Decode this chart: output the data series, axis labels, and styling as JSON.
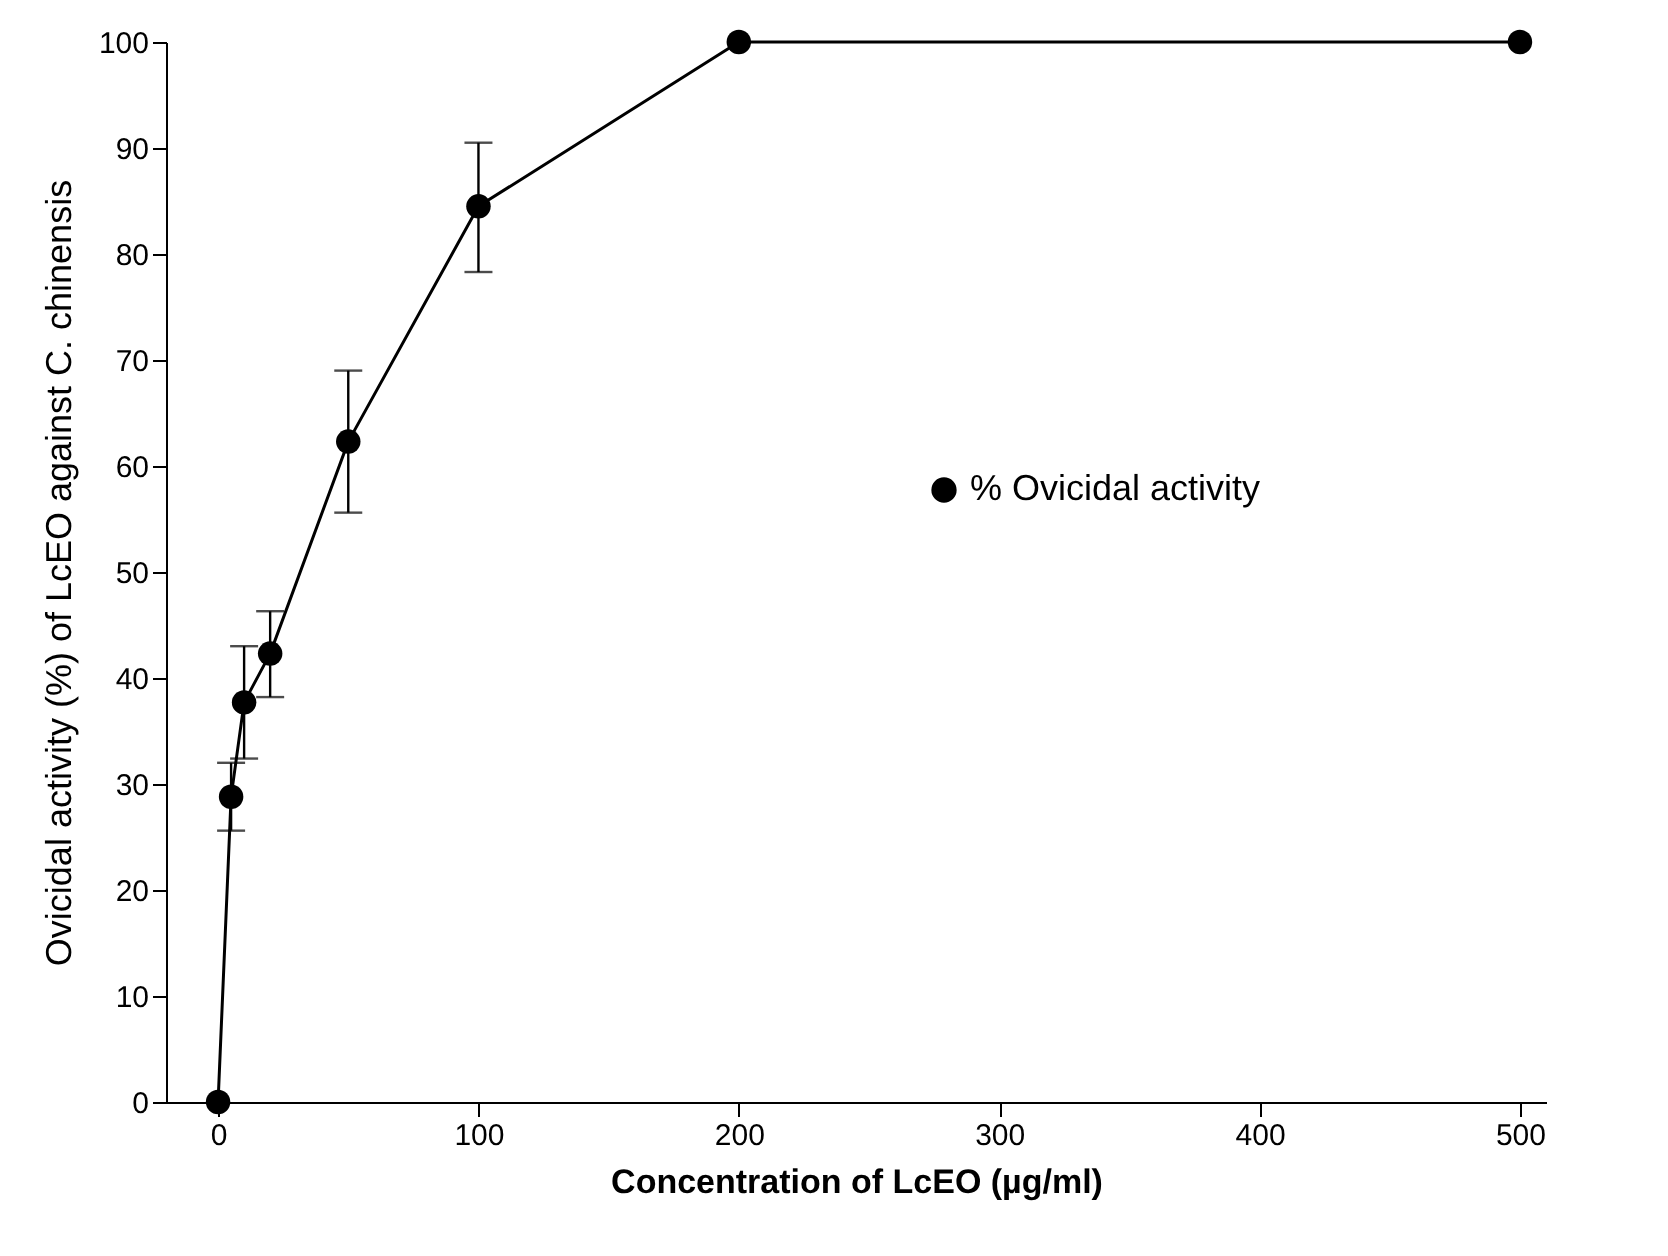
{
  "chart_data": {
    "type": "line",
    "xlabel": "Concentration of LcEO (µg/ml)",
    "ylabel": "Ovicidal activity (%) of  LcEO against C. chinensis",
    "x": [
      0,
      5,
      10,
      20,
      50,
      100,
      200,
      500
    ],
    "series": [
      {
        "name": "% Ovicidal activity",
        "color": "#000000",
        "values": [
          0,
          28.8,
          37.7,
          42.3,
          62.3,
          84.5,
          100,
          100
        ],
        "errors": [
          null,
          [
            25.6,
            32
          ],
          [
            32.4,
            43
          ],
          [
            38.2,
            46.3
          ],
          [
            55.6,
            69
          ],
          [
            78.3,
            90.5
          ],
          null,
          null
        ]
      }
    ],
    "xlim": [
      -20,
      510
    ],
    "xticks": [
      0,
      100,
      200,
      300,
      400,
      500
    ],
    "ylim": [
      0,
      100
    ],
    "yticks": [
      0,
      10,
      20,
      30,
      40,
      50,
      60,
      70,
      80,
      90,
      100
    ],
    "grid": false,
    "legend": "right",
    "marker": "circle",
    "line_style": "solid"
  }
}
